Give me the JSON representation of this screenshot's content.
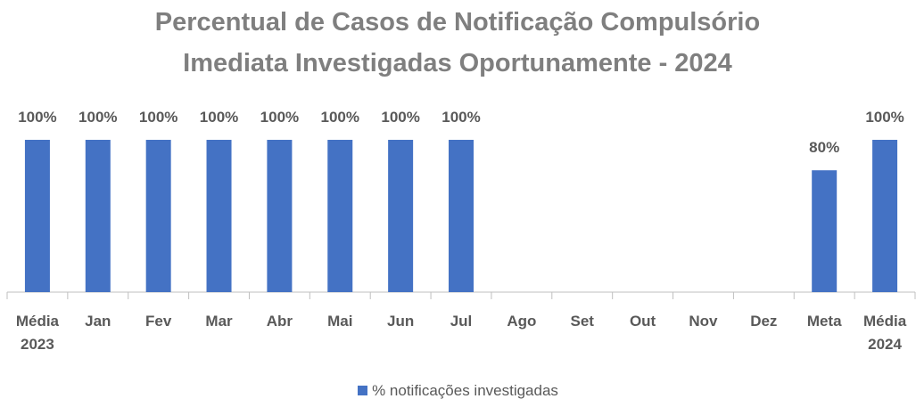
{
  "chart_data": {
    "type": "bar",
    "title": "Percentual de Casos de Notificação Compulsório Imediata Investigadas Oportunamente - 2024",
    "categories": [
      "Média 2023",
      "Jan",
      "Fev",
      "Mar",
      "Abr",
      "Mai",
      "Jun",
      "Jul",
      "Ago",
      "Set",
      "Out",
      "Nov",
      "Dez",
      "Meta",
      "Média 2024"
    ],
    "series": [
      {
        "name": "% notificações investigadas",
        "color": "#4472c4",
        "values": [
          100,
          100,
          100,
          100,
          100,
          100,
          100,
          100,
          null,
          null,
          null,
          null,
          null,
          80,
          100
        ],
        "value_labels": [
          "100%",
          "100%",
          "100%",
          "100%",
          "100%",
          "100%",
          "100%",
          "100%",
          null,
          null,
          null,
          null,
          null,
          "80%",
          "100%"
        ]
      }
    ],
    "ylim": [
      0,
      100
    ],
    "legend": "bottom"
  }
}
